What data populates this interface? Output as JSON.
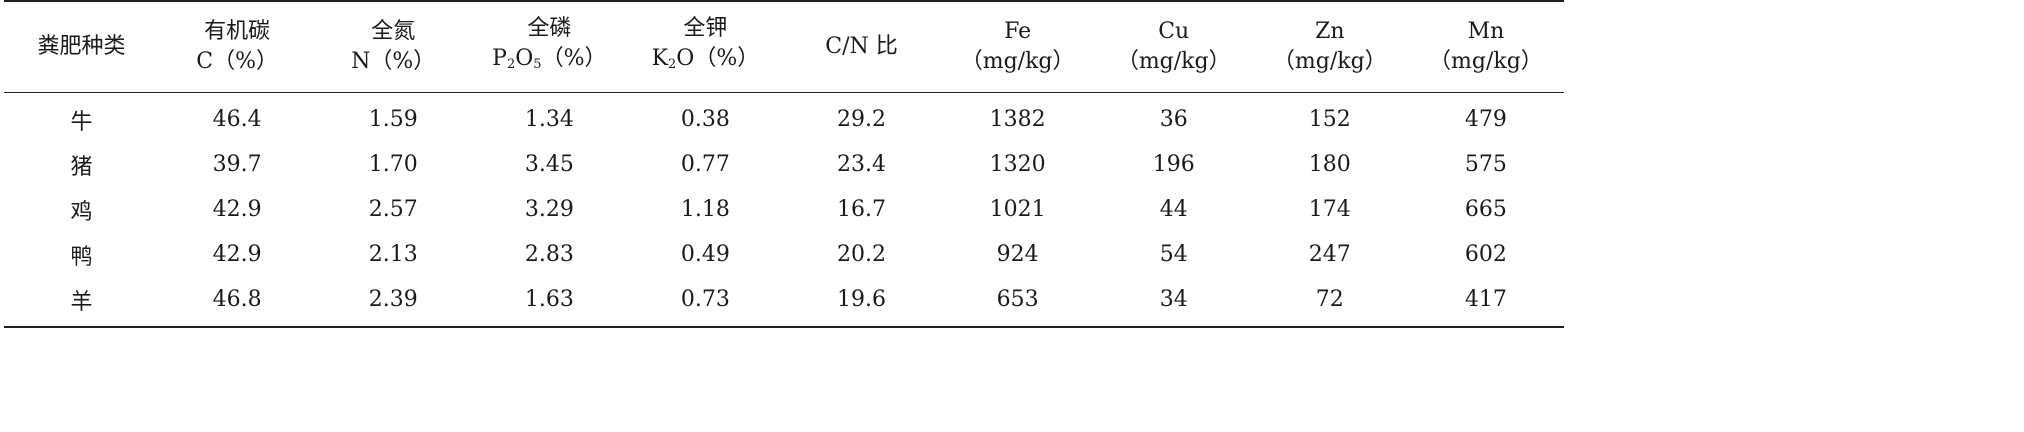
{
  "table": {
    "headers": [
      {
        "line1": "粪肥种类",
        "line2": ""
      },
      {
        "line1": "有机碳",
        "line2": "C（%）"
      },
      {
        "line1": "全氮",
        "line2": "N（%）"
      },
      {
        "line1": "全磷",
        "line2_pre": "P",
        "line2_sub1": "2",
        "line2_mid": "O",
        "line2_sub2": "5",
        "line2_post": "（%）"
      },
      {
        "line1": "全钾",
        "line2_pre": "K",
        "line2_sub1": "2",
        "line2_mid": "O（%）"
      },
      {
        "line1": "C/N 比",
        "line2": ""
      },
      {
        "line1": "Fe",
        "line2": "（mg/kg）"
      },
      {
        "line1": "Cu",
        "line2": "（mg/kg）"
      },
      {
        "line1": "Zn",
        "line2": "（mg/kg）"
      },
      {
        "line1": "Mn",
        "line2": "（mg/kg）"
      }
    ],
    "rows": [
      [
        "牛",
        "46.4",
        "1.59",
        "1.34",
        "0.38",
        "29.2",
        "1382",
        "36",
        "152",
        "479"
      ],
      [
        "猪",
        "39.7",
        "1.70",
        "3.45",
        "0.77",
        "23.4",
        "1320",
        "196",
        "180",
        "575"
      ],
      [
        "鸡",
        "42.9",
        "2.57",
        "3.29",
        "1.18",
        "16.7",
        "1021",
        "44",
        "174",
        "665"
      ],
      [
        "鸭",
        "42.9",
        "2.13",
        "2.83",
        "0.49",
        "20.2",
        "924",
        "54",
        "247",
        "602"
      ],
      [
        "羊",
        "46.8",
        "2.39",
        "1.63",
        "0.73",
        "19.6",
        "653",
        "34",
        "72",
        "417"
      ]
    ]
  }
}
